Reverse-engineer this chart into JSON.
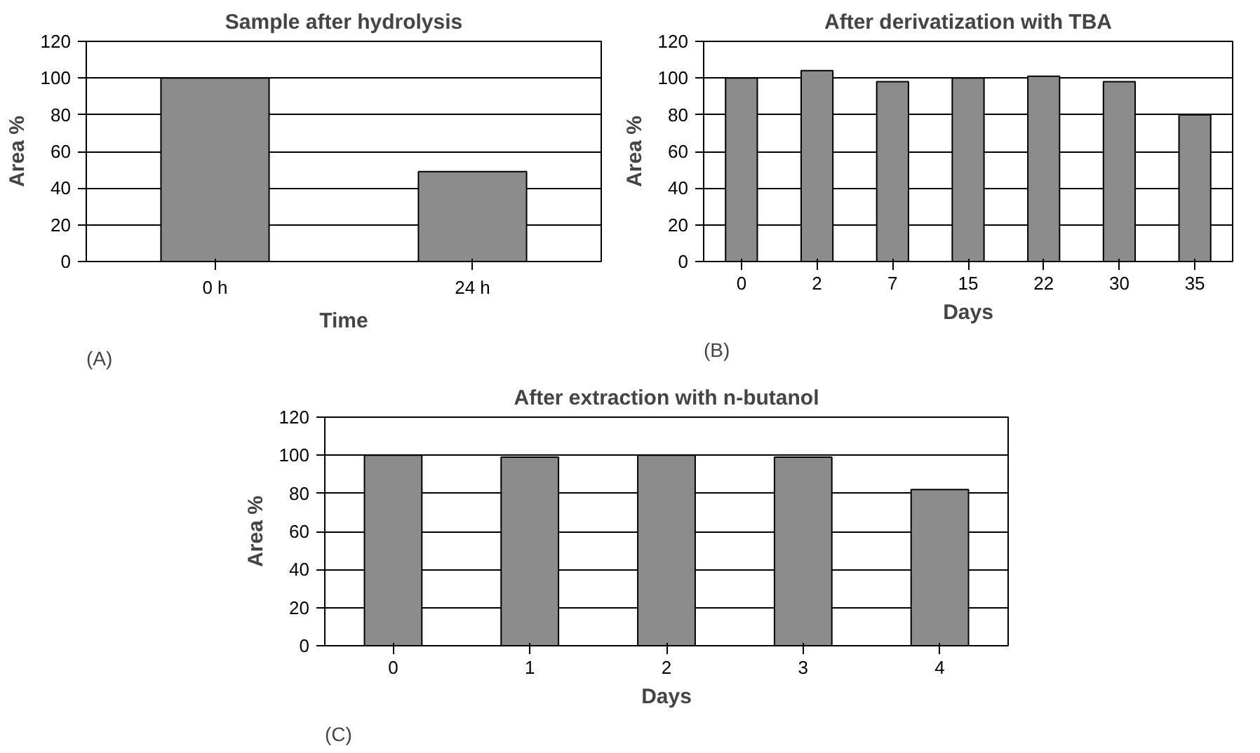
{
  "chart_data": [
    {
      "type": "bar",
      "title": "Sample after hydrolysis",
      "xlabel": "Time",
      "ylabel": "Area %",
      "categories": [
        "0 h",
        "24 h"
      ],
      "values": [
        100,
        49
      ],
      "color": "#8c8c8c",
      "ylim": [
        0,
        120
      ],
      "yticks": [
        0,
        20,
        40,
        60,
        80,
        100,
        120
      ],
      "grid": "y",
      "annotations": [
        "(A)"
      ]
    },
    {
      "type": "bar",
      "title": "After derivatization with TBA",
      "xlabel": "Days",
      "ylabel": "Area %",
      "categories": [
        "0",
        "2",
        "7",
        "15",
        "22",
        "30",
        "35"
      ],
      "values": [
        100,
        104,
        98,
        100,
        101,
        98,
        80
      ],
      "color": "#8c8c8c",
      "ylim": [
        0,
        120
      ],
      "yticks": [
        0,
        20,
        40,
        60,
        80,
        100,
        120
      ],
      "grid": "y",
      "annotations": [
        "(B)"
      ]
    },
    {
      "type": "bar",
      "title": "After extraction with n-butanol",
      "xlabel": "Days",
      "ylabel": "Area %",
      "categories": [
        "0",
        "1",
        "2",
        "3",
        "4"
      ],
      "values": [
        100,
        99,
        100,
        99,
        82
      ],
      "color": "#8c8c8c",
      "ylim": [
        0,
        120
      ],
      "yticks": [
        0,
        20,
        40,
        60,
        80,
        100,
        120
      ],
      "grid": "y",
      "annotations": [
        "(C)"
      ]
    }
  ]
}
